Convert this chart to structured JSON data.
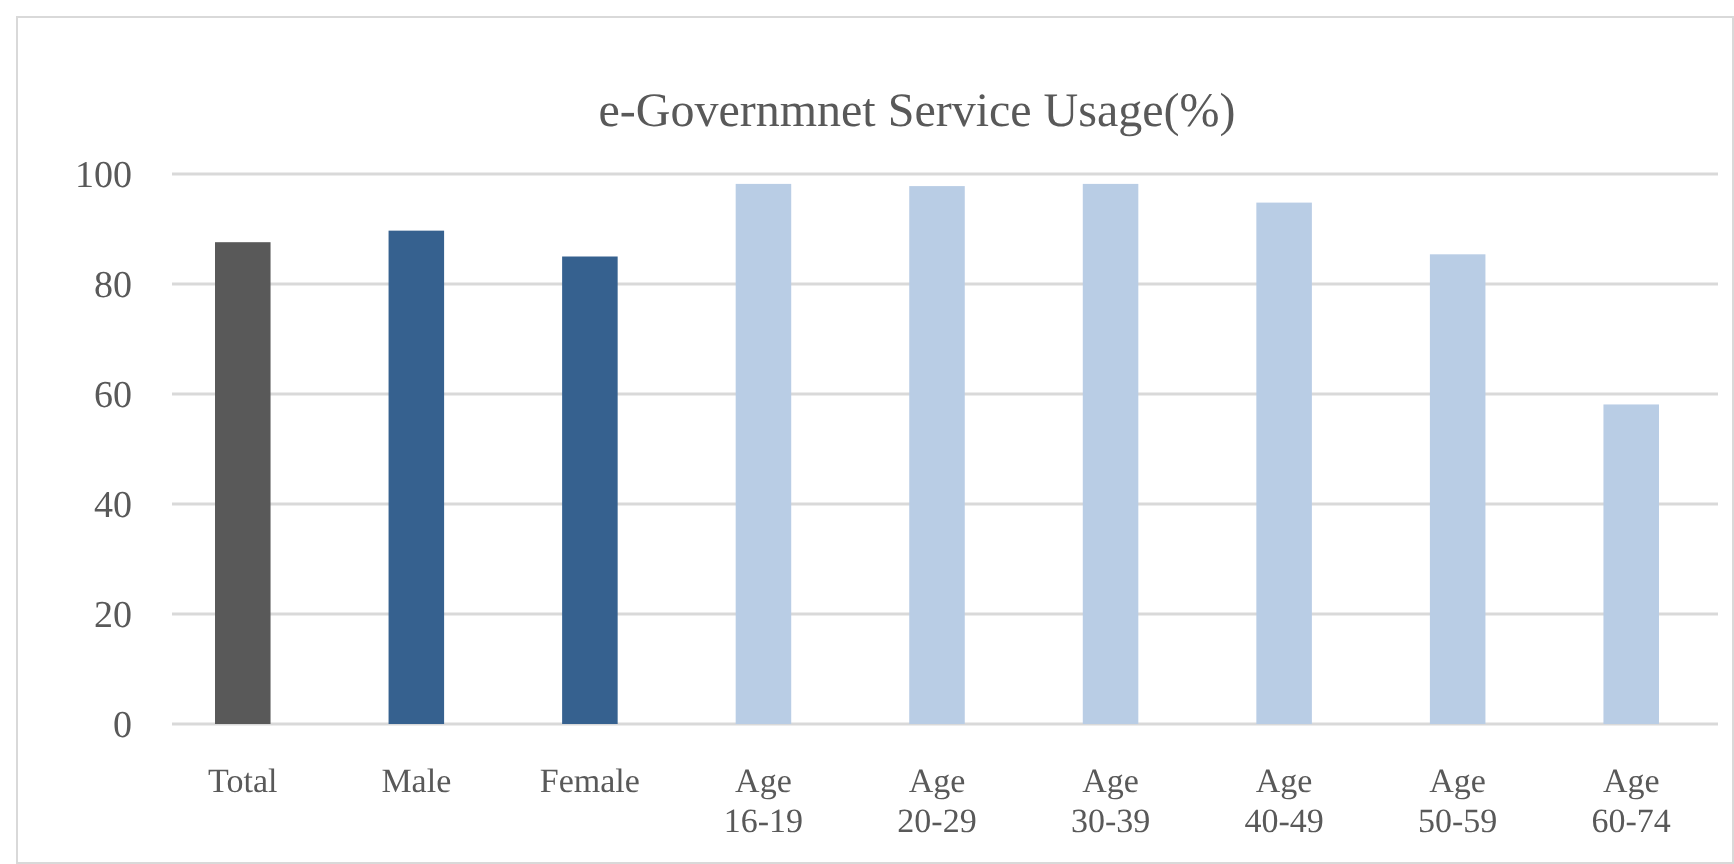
{
  "chart_data": {
    "type": "bar",
    "title": "e-Governmnet Service Usage(%)",
    "categories": [
      "Total",
      "Male",
      "Female",
      "Age\n16-19",
      "Age\n20-29",
      "Age\n30-39",
      "Age\n40-49",
      "Age\n50-59",
      "Age\n60-74"
    ],
    "values": [
      87.6,
      89.7,
      85.0,
      98.2,
      97.8,
      98.2,
      94.8,
      85.4,
      58.1
    ],
    "colors": [
      "#595959",
      "#36618f",
      "#36618f",
      "#b9cde5",
      "#b9cde5",
      "#b9cde5",
      "#b9cde5",
      "#b9cde5",
      "#b9cde5"
    ],
    "ylim": [
      0,
      100
    ],
    "yticks": [
      0,
      20,
      40,
      60,
      80,
      100
    ],
    "grid": "y"
  }
}
